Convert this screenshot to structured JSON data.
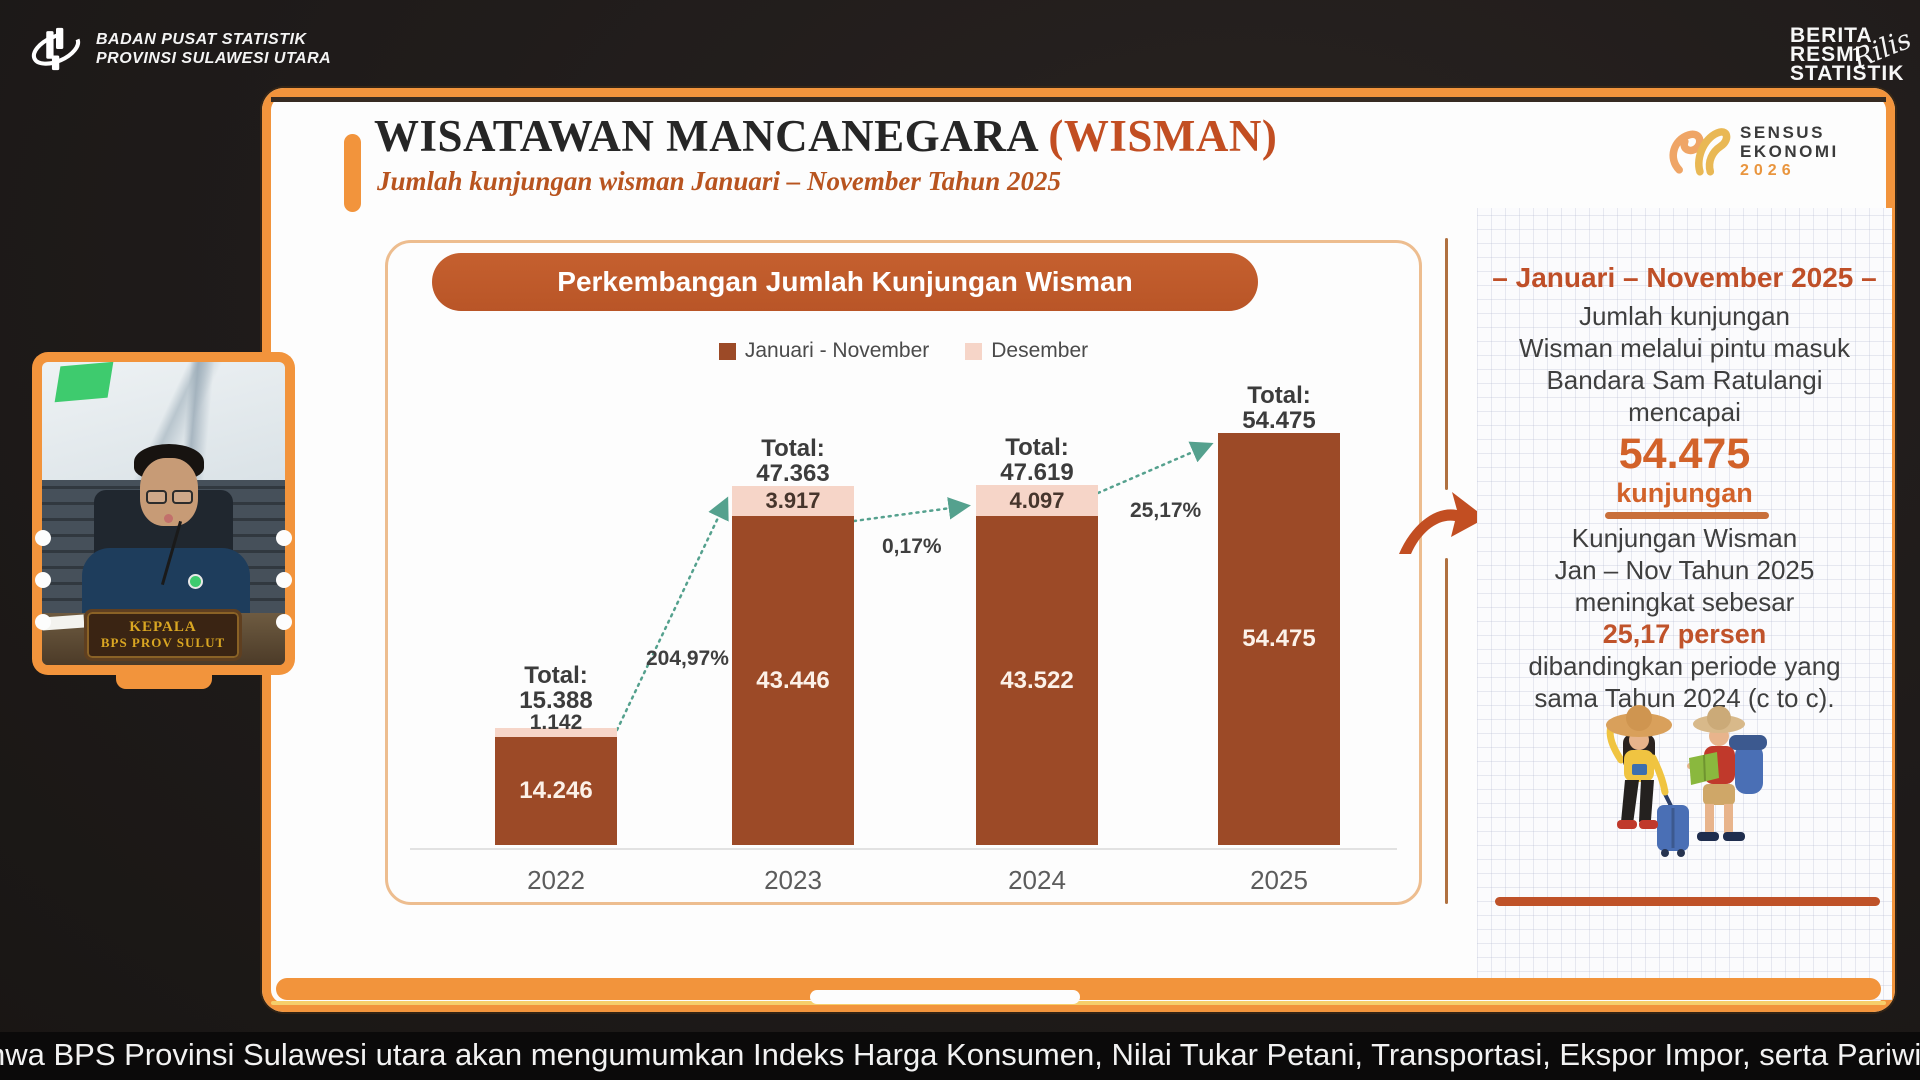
{
  "header": {
    "org_name_line1": "BADAN PUSAT STATISTIK",
    "org_name_line2": "PROVINSI SULAWESI UTARA",
    "brs_line1": "BERITA",
    "brs_line2": "RESMI",
    "brs_line3": "STATISTIK",
    "brs_script_overlay": "Rilis"
  },
  "slide": {
    "title": "WISATAWAN MANCANEGARA",
    "title_highlight": " (WISMAN)",
    "subtitle": "Jumlah kunjungan wisman Januari – November Tahun 2025",
    "sensus_logo": {
      "line1": "SENSUS",
      "line2": "EKONOMI",
      "year": "2026"
    }
  },
  "chart_data": {
    "type": "bar",
    "stacked": true,
    "title": "Perkembangan Jumlah Kunjungan Wisman",
    "categories": [
      "2022",
      "2023",
      "2024",
      "2025"
    ],
    "series": [
      {
        "name": "Januari - November",
        "color": "#9c4a27",
        "values": [
          14246,
          43446,
          43522,
          54475
        ],
        "labels": [
          "14.246",
          "43.446",
          "43.522",
          "54.475"
        ]
      },
      {
        "name": "Desember",
        "color": "#f6d5c8",
        "values": [
          1142,
          3917,
          4097,
          null
        ],
        "labels": [
          "1.142",
          "3.917",
          "4.097",
          ""
        ]
      }
    ],
    "totals": {
      "prefix": "Total:",
      "labels": [
        "15.388",
        "47.363",
        "47.619",
        "54.475"
      ]
    },
    "growth_labels": [
      "204,97%",
      "0,17%",
      "25,17%"
    ],
    "ylim": [
      0,
      57000
    ],
    "legend_position": "top",
    "grid": false
  },
  "right_panel": {
    "heading": "– Januari – November 2025 –",
    "p1_line1": "Jumlah kunjungan",
    "p1_line2": "Wisman melalui pintu masuk",
    "p1_line3": "Bandara Sam Ratulangi",
    "p1_line4": "mencapai",
    "big_number": "54.475",
    "big_number_unit": "kunjungan",
    "p2_line1": "Kunjungan Wisman",
    "p2_line2": "Jan – Nov Tahun 2025",
    "p2_line3": "meningkat sebesar",
    "p2_highlight": "25,17 persen",
    "p2_line4": "dibandingkan periode yang",
    "p2_line5": "sama Tahun 2024 (c to c)."
  },
  "video": {
    "nameplate_line1": "KEPALA",
    "nameplate_line2": "BPS PROV SULUT"
  },
  "ticker": {
    "text": "nwa BPS Provinsi Sulawesi utara akan mengumumkan Indeks Harga Konsumen, Nilai Tukar Petani, Transportasi, Ekspor Impor, serta Pariwisata |Bersa"
  },
  "colors": {
    "frame_orange": "#f2943c",
    "brick": "#bf5229",
    "bar_brown": "#9c4a27",
    "bar_pink": "#f6d5c8",
    "arrow_teal": "#55a18e",
    "dark_background": "#1f1b1a"
  }
}
